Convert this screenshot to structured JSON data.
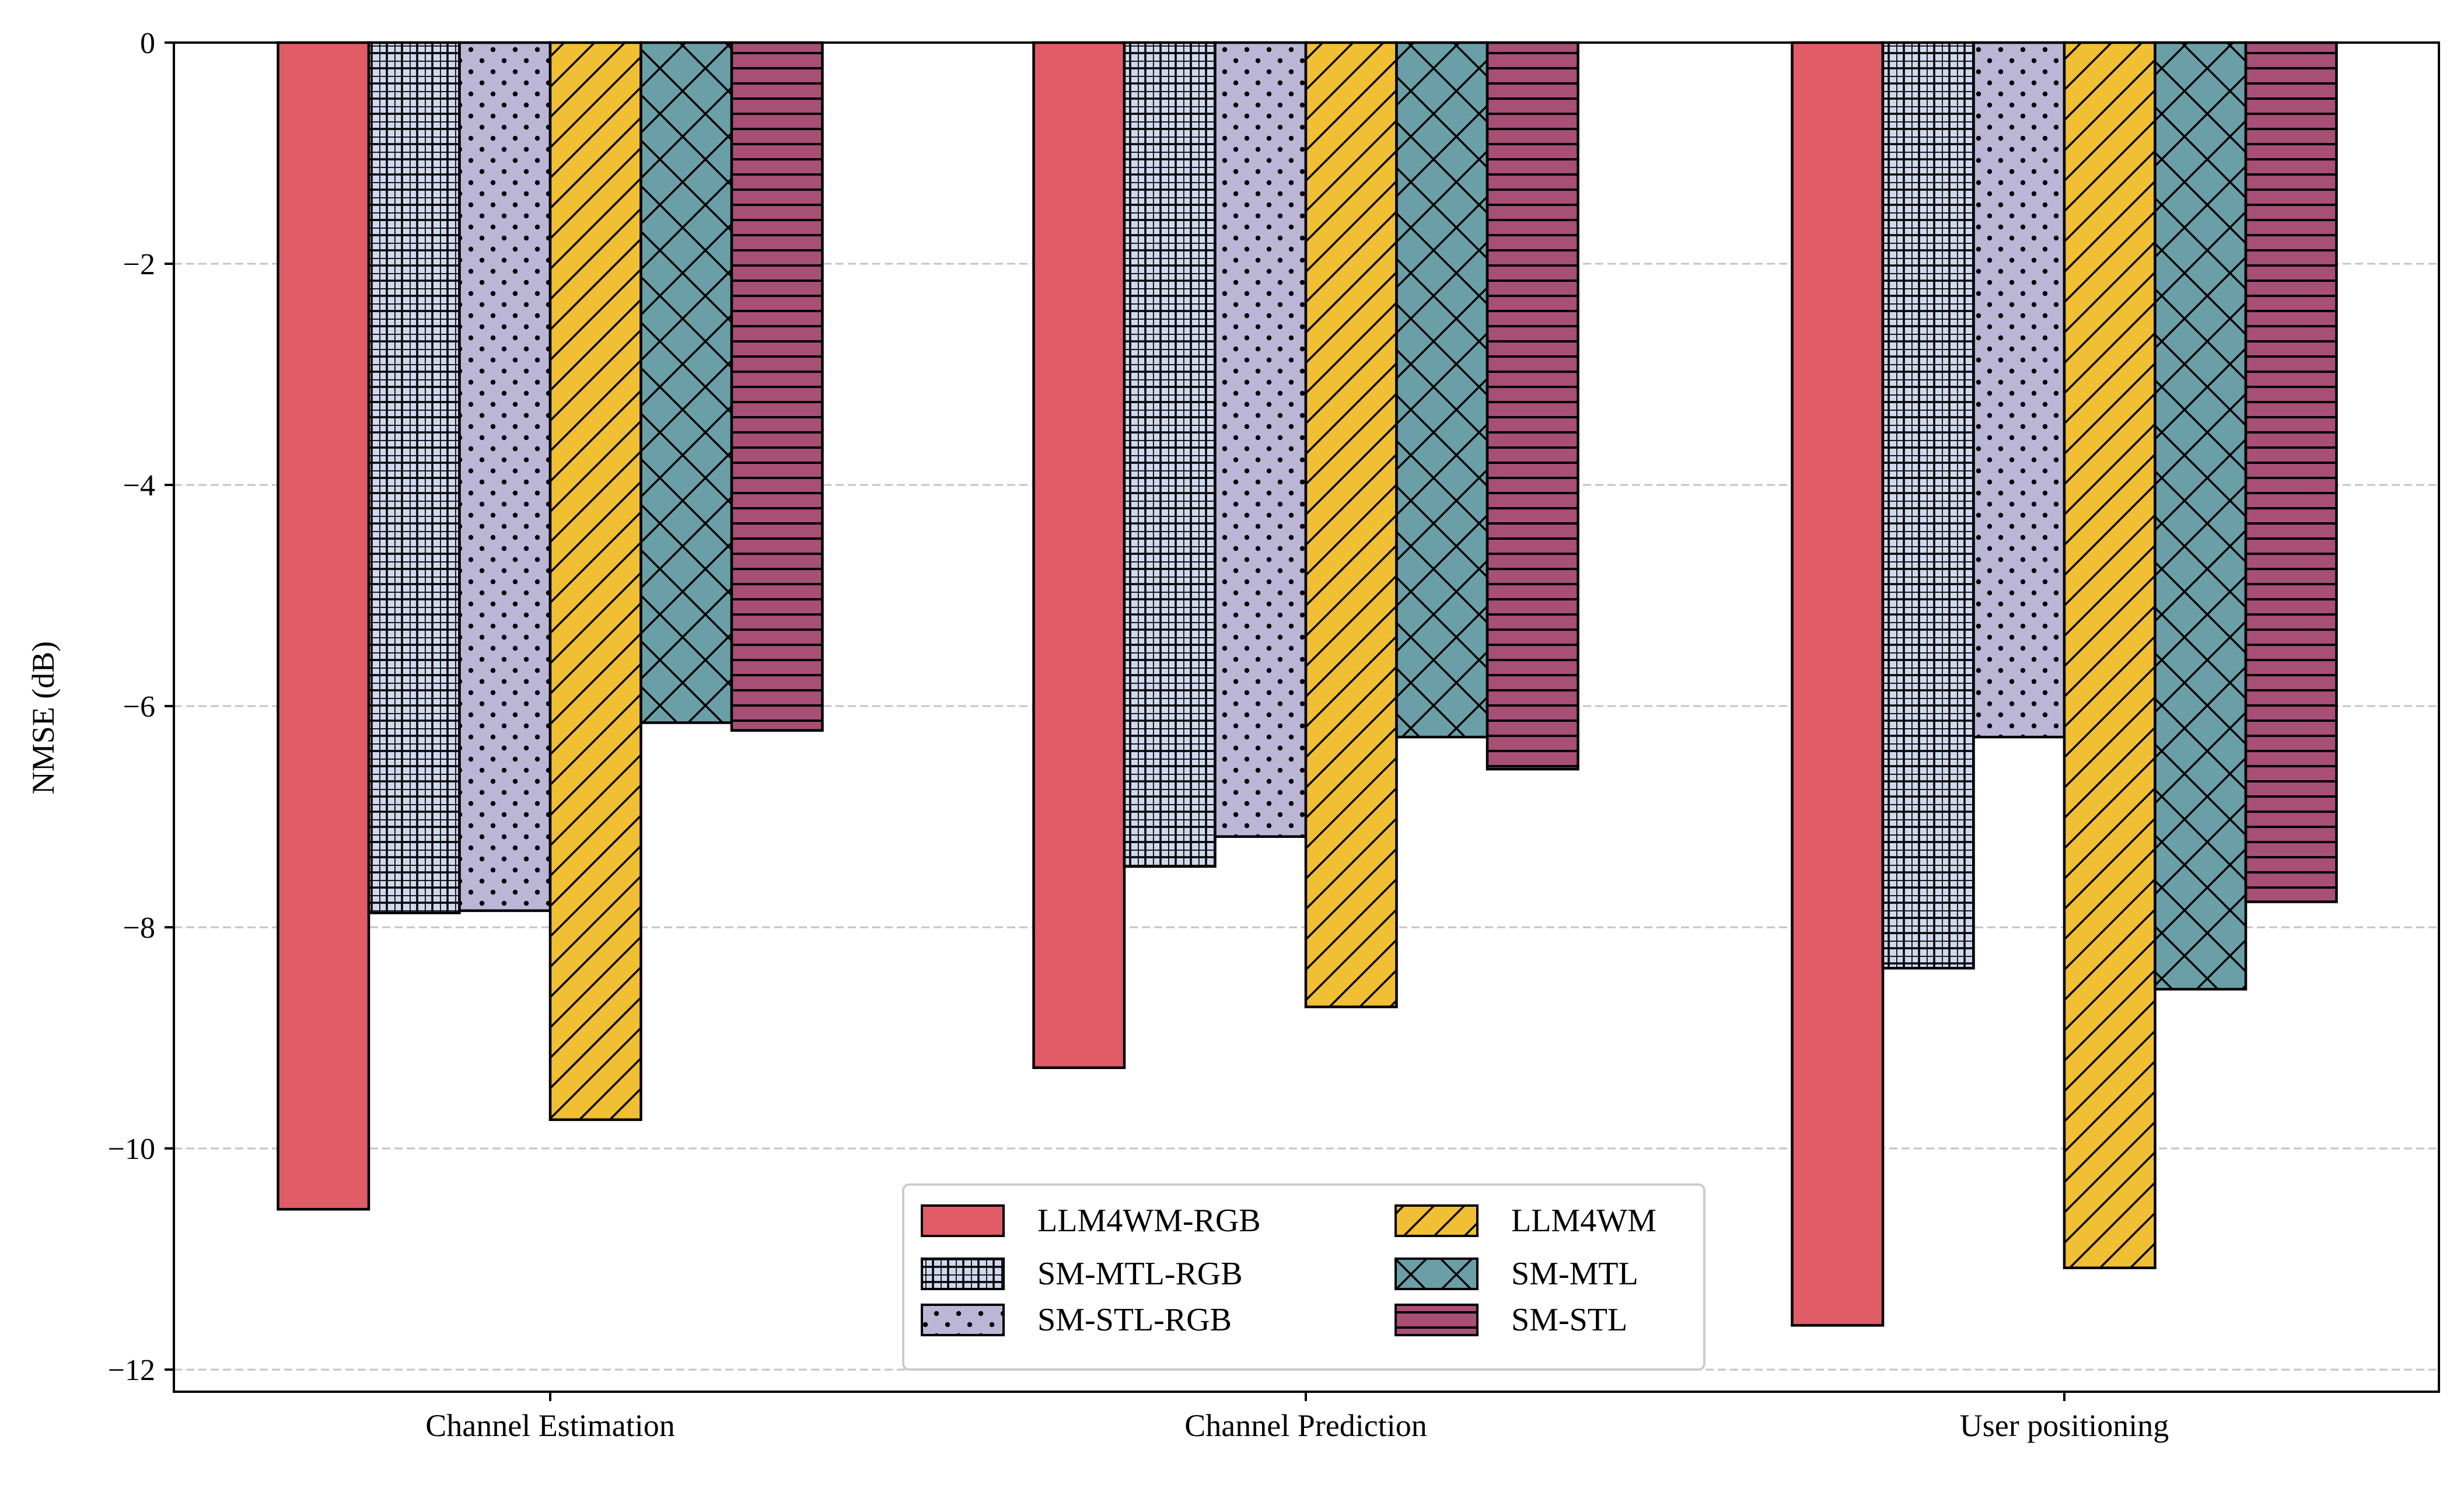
{
  "chart_data": {
    "type": "bar",
    "title": "",
    "xlabel": "",
    "ylabel": "NMSE (dB)",
    "ylim": [
      -12.2,
      0
    ],
    "yticks": [
      0,
      -2,
      -4,
      -6,
      -8,
      -10,
      -12
    ],
    "ytick_labels": [
      "0",
      "−2",
      "−4",
      "−6",
      "−8",
      "−10",
      "−12"
    ],
    "grid": "y-dashed",
    "categories": [
      "Channel Estimation",
      "Channel Prediction",
      "User positioning"
    ],
    "series": [
      {
        "name": "LLM4WM-RGB",
        "color": "#e05c67",
        "hatch": "none",
        "values": [
          -10.55,
          -9.27,
          -11.6
        ]
      },
      {
        "name": "SM-MTL-RGB",
        "color": "#cfd8ee",
        "hatch": "grid",
        "values": [
          -7.87,
          -7.45,
          -8.37
        ]
      },
      {
        "name": "SM-STL-RGB",
        "color": "#bbb6d6",
        "hatch": "dots",
        "values": [
          -7.85,
          -7.18,
          -6.28
        ]
      },
      {
        "name": "LLM4WM",
        "color": "#f1bf33",
        "hatch": "diagonal",
        "values": [
          -9.74,
          -8.72,
          -11.08
        ]
      },
      {
        "name": "SM-MTL",
        "color": "#6b9fa7",
        "hatch": "crosshatch",
        "values": [
          -6.15,
          -6.28,
          -8.56
        ]
      },
      {
        "name": "SM-STL",
        "color": "#a84f76",
        "hatch": "horizontal",
        "values": [
          -6.22,
          -6.57,
          -7.77
        ]
      }
    ],
    "legend": {
      "placement": "lower-center",
      "columns": 2
    }
  }
}
